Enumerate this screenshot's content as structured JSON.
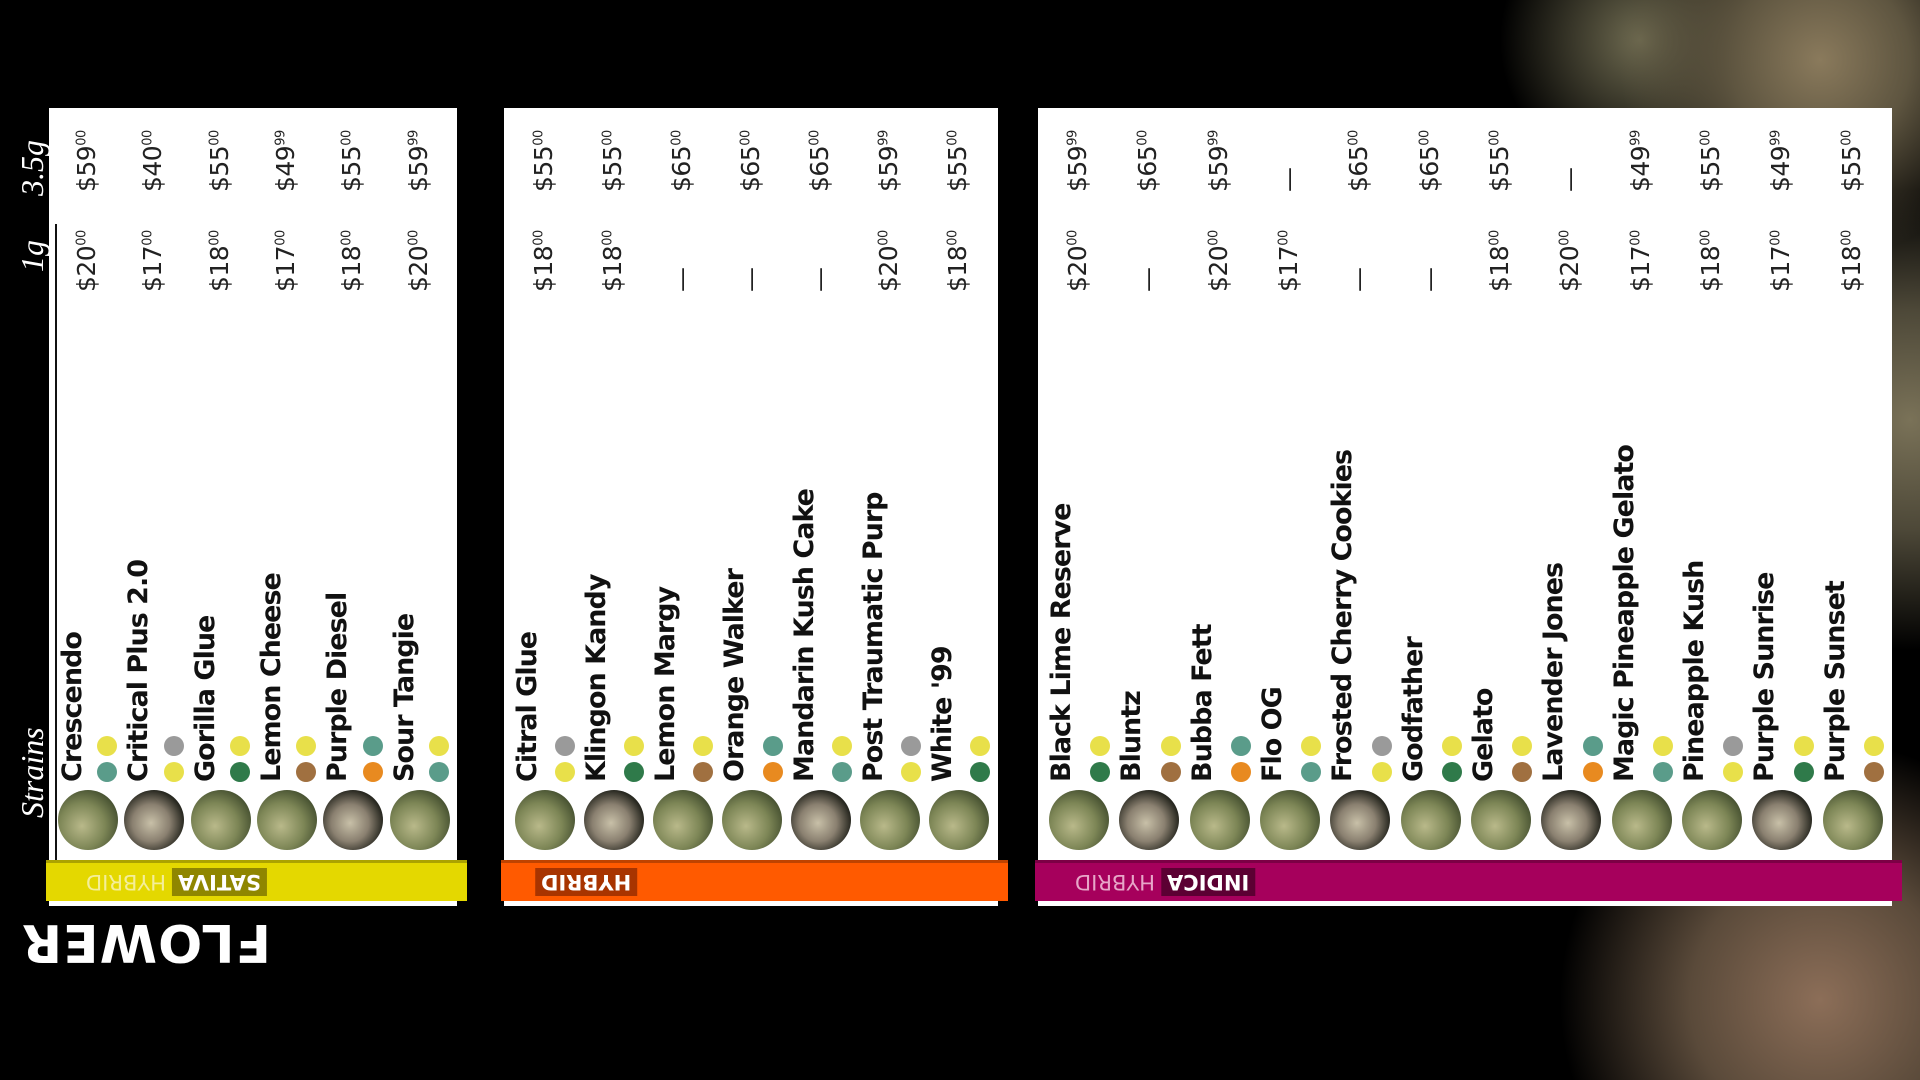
{
  "brand": {
    "title": "FLOWER",
    "headers": {
      "strains": "Strains",
      "gram": "1g",
      "eighth": "3.5g"
    }
  },
  "panels": [
    {
      "label": "SATIVA",
      "secondary": "HYBRID",
      "color": "#e4d800",
      "dark": "#8f8600",
      "light": "#f4ee9a",
      "strains": [
        {
          "name": "Crescendo",
          "price_1g": {
            "dollars": "$20",
            "cents": "00"
          },
          "price_35g": {
            "dollars": "$59",
            "cents": "00"
          }
        },
        {
          "name": "Critical Plus 2.0",
          "price_1g": {
            "dollars": "$17",
            "cents": "00"
          },
          "price_35g": {
            "dollars": "$40",
            "cents": "00"
          }
        },
        {
          "name": "Gorilla Glue",
          "price_1g": {
            "dollars": "$18",
            "cents": "00"
          },
          "price_35g": {
            "dollars": "$55",
            "cents": "00"
          }
        },
        {
          "name": "Lemon Cheese",
          "price_1g": {
            "dollars": "$17",
            "cents": "00"
          },
          "price_35g": {
            "dollars": "$49",
            "cents": "99"
          }
        },
        {
          "name": "Purple Diesel",
          "price_1g": {
            "dollars": "$18",
            "cents": "00"
          },
          "price_35g": {
            "dollars": "$55",
            "cents": "00"
          }
        },
        {
          "name": "Sour Tangie",
          "price_1g": {
            "dollars": "$20",
            "cents": "00"
          },
          "price_35g": {
            "dollars": "$59",
            "cents": "99"
          }
        }
      ]
    },
    {
      "label": "HYBRID",
      "color": "#ff5a00",
      "dark": "#a83400",
      "strains": [
        {
          "name": "Citral Glue",
          "price_1g": {
            "dollars": "$18",
            "cents": "00"
          },
          "price_35g": {
            "dollars": "$55",
            "cents": "00"
          }
        },
        {
          "name": "Klingon Kandy",
          "price_1g": {
            "dollars": "$18",
            "cents": "00"
          },
          "price_35g": {
            "dollars": "$55",
            "cents": "00"
          }
        },
        {
          "name": "Lemon Margy",
          "price_1g": "—",
          "price_35g": {
            "dollars": "$65",
            "cents": "00"
          }
        },
        {
          "name": "Orange Walker",
          "price_1g": "—",
          "price_35g": {
            "dollars": "$65",
            "cents": "00"
          }
        },
        {
          "name": "Mandarin Kush Cake",
          "price_1g": "—",
          "price_35g": {
            "dollars": "$65",
            "cents": "00"
          }
        },
        {
          "name": "Post Traumatic Purp",
          "price_1g": {
            "dollars": "$20",
            "cents": "00"
          },
          "price_35g": {
            "dollars": "$59",
            "cents": "99"
          }
        },
        {
          "name": "White '99",
          "price_1g": {
            "dollars": "$18",
            "cents": "00"
          },
          "price_35g": {
            "dollars": "$55",
            "cents": "00"
          }
        }
      ]
    },
    {
      "label": "INDICA",
      "secondary": "HYBRID",
      "color": "#a6005c",
      "dark": "#5c0033",
      "light": "#e7a6c8",
      "strains": [
        {
          "name": "Black Lime Reserve",
          "price_1g": {
            "dollars": "$20",
            "cents": "00"
          },
          "price_35g": {
            "dollars": "$59",
            "cents": "99"
          }
        },
        {
          "name": "Bluntz",
          "price_1g": "—",
          "price_35g": {
            "dollars": "$65",
            "cents": "00"
          }
        },
        {
          "name": "Bubba Fett",
          "price_1g": {
            "dollars": "$20",
            "cents": "00"
          },
          "price_35g": {
            "dollars": "$59",
            "cents": "99"
          }
        },
        {
          "name": "Flo OG",
          "price_1g": {
            "dollars": "$17",
            "cents": "00"
          },
          "price_35g": "—"
        },
        {
          "name": "Frosted Cherry Cookies",
          "price_1g": "—",
          "price_35g": {
            "dollars": "$65",
            "cents": "00"
          }
        },
        {
          "name": "Godfather",
          "price_1g": "—",
          "price_35g": {
            "dollars": "$65",
            "cents": "00"
          }
        },
        {
          "name": "Gelato",
          "price_1g": {
            "dollars": "$18",
            "cents": "00"
          },
          "price_35g": {
            "dollars": "$55",
            "cents": "00"
          }
        },
        {
          "name": "Lavender Jones",
          "price_1g": {
            "dollars": "$20",
            "cents": "00"
          },
          "price_35g": "—"
        },
        {
          "name": "Magic Pineapple Gelato",
          "price_1g": {
            "dollars": "$17",
            "cents": "00"
          },
          "price_35g": {
            "dollars": "$49",
            "cents": "99"
          }
        },
        {
          "name": "Pineapple Kush",
          "price_1g": {
            "dollars": "$18",
            "cents": "00"
          },
          "price_35g": {
            "dollars": "$55",
            "cents": "00"
          }
        },
        {
          "name": "Purple Sunrise",
          "price_1g": {
            "dollars": "$17",
            "cents": "00"
          },
          "price_35g": {
            "dollars": "$49",
            "cents": "99"
          }
        },
        {
          "name": "Purple Sunset",
          "price_1g": {
            "dollars": "$18",
            "cents": "00"
          },
          "price_35g": {
            "dollars": "$55",
            "cents": "00"
          }
        }
      ]
    }
  ]
}
